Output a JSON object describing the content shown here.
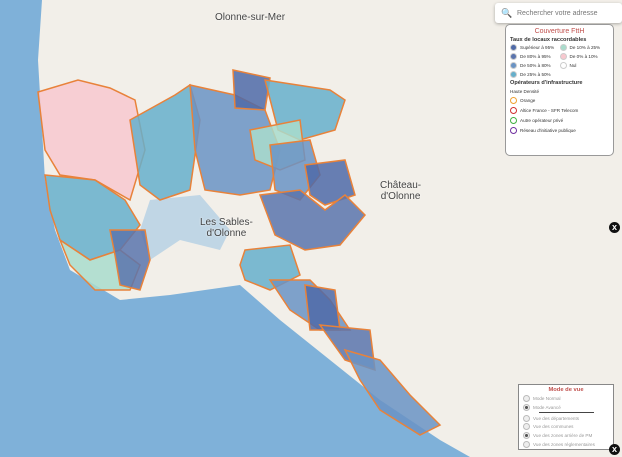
{
  "map": {
    "labels": [
      "Olonne-sur-Mer",
      "Château-\nd'Olonne",
      "Les Sables-\nd'Olonne"
    ],
    "colors": {
      "sea": "#7fb1d9",
      "land": "#f2efe9",
      "border": "#e8823a",
      "c95": "#4f6aa8",
      "c80": "#5b74ad",
      "c50": "#6a93c4",
      "c25": "#66afcb",
      "c10": "#a9dccc",
      "c0": "#f8c8cf"
    }
  },
  "search": {
    "placeholder": "Rechercher votre adresse",
    "icon": "search-icon"
  },
  "legend": {
    "title": "Couverture FttH",
    "rate_title": "Taux de locaux raccordables",
    "rates": [
      {
        "label": "Supérieur à 95%",
        "color": "#4f6aa8"
      },
      {
        "label": "De 10% à 25%",
        "color": "#a9dccc"
      },
      {
        "label": "De 80% à 95%",
        "color": "#5b74ad"
      },
      {
        "label": "De 0% à 10%",
        "color": "#f8c8cf"
      },
      {
        "label": "De 50% à 80%",
        "color": "#6a93c4"
      },
      {
        "label": "Nul",
        "color": "#ffffff"
      },
      {
        "label": "De 25% à 50%",
        "color": "#66afcb"
      }
    ],
    "operators_title": "Opérateurs d'infrastructure",
    "density": "Haute Densité",
    "operators": [
      {
        "label": "Orange",
        "color": "#f0a030"
      },
      {
        "label": "Altice France - SFR Telecom",
        "color": "#d03030"
      },
      {
        "label": "Autre opérateur privé",
        "color": "#40b040"
      },
      {
        "label": "Réseau d'initiative publique",
        "color": "#7030a0"
      }
    ]
  },
  "mode": {
    "title": "Mode de vue",
    "options": [
      {
        "label": "Mode Normal",
        "checked": false
      },
      {
        "label": "Mode Avancé",
        "checked": true
      }
    ],
    "layers": [
      {
        "label": "Vue des départements",
        "checked": false
      },
      {
        "label": "Vue des communes",
        "checked": false
      },
      {
        "label": "Vue des zones arrière de PM",
        "checked": true
      },
      {
        "label": "Vue des zones réglementaires",
        "checked": false
      }
    ]
  },
  "close_label": "x"
}
